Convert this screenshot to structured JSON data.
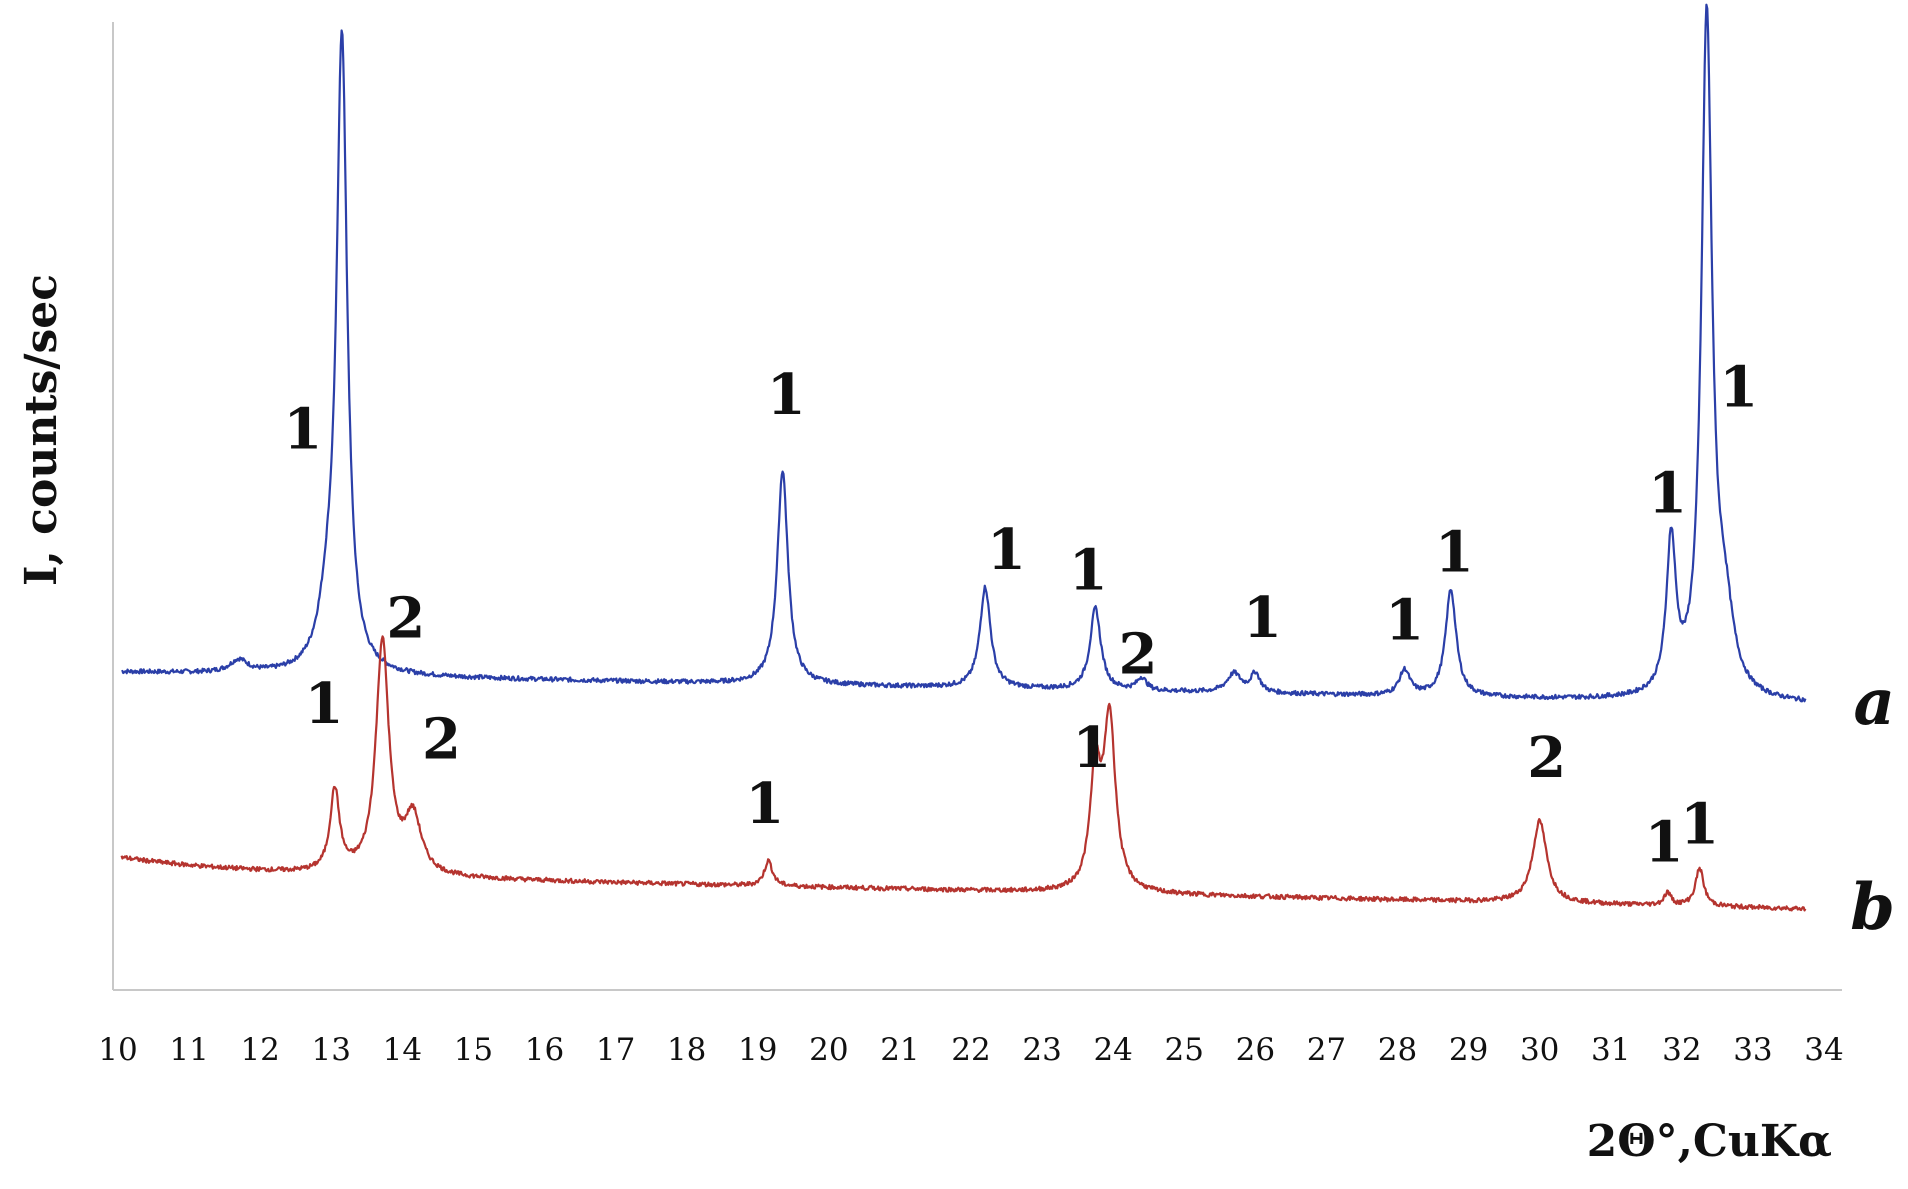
{
  "chart_data": {
    "type": "line",
    "title": "",
    "xlabel": "2Θ°,CuKα",
    "ylabel": "I, counts/sec",
    "xlim": [
      10,
      34
    ],
    "x_ticks": [
      10,
      11,
      12,
      13,
      14,
      15,
      16,
      17,
      18,
      19,
      20,
      21,
      22,
      23,
      24,
      25,
      26,
      27,
      28,
      29,
      30,
      31,
      32,
      33,
      34
    ],
    "grid": false,
    "legend": "none",
    "y_tick_labels": false,
    "colors": {
      "a": "#2b3fa8",
      "b": "#b5342f",
      "axis": "#c8c8c8",
      "text": "#111111"
    },
    "series": [
      {
        "name": "a",
        "baseline": 0,
        "peaks": [
          {
            "x": 11.7,
            "h": 2,
            "w": 0.15
          },
          {
            "x": 13.15,
            "h": 100,
            "w": 0.09
          },
          {
            "x": 12.95,
            "h": 8,
            "w": 0.15
          },
          {
            "x": 19.35,
            "h": 34,
            "w": 0.09
          },
          {
            "x": 22.2,
            "h": 16,
            "w": 0.09
          },
          {
            "x": 23.75,
            "h": 13,
            "w": 0.09
          },
          {
            "x": 24.4,
            "h": 2,
            "w": 0.08
          },
          {
            "x": 25.7,
            "h": 3,
            "w": 0.12
          },
          {
            "x": 26.0,
            "h": 3,
            "w": 0.08
          },
          {
            "x": 28.1,
            "h": 4,
            "w": 0.09
          },
          {
            "x": 28.75,
            "h": 17,
            "w": 0.09
          },
          {
            "x": 31.85,
            "h": 24,
            "w": 0.08
          },
          {
            "x": 32.35,
            "h": 107,
            "w": 0.09
          },
          {
            "x": 32.6,
            "h": 12,
            "w": 0.15
          }
        ],
        "peak_labels": [
          {
            "text": "1",
            "x": 12.6,
            "y": 36
          },
          {
            "text": "1",
            "x": 19.4,
            "y": 43
          },
          {
            "text": "1",
            "x": 22.5,
            "y": 19
          },
          {
            "text": "1",
            "x": 23.65,
            "y": 16
          },
          {
            "text": "1",
            "x": 26.1,
            "y": 9
          },
          {
            "text": "1",
            "x": 28.1,
            "y": 9
          },
          {
            "text": "1",
            "x": 28.8,
            "y": 20
          },
          {
            "text": "1",
            "x": 31.8,
            "y": 30
          },
          {
            "text": "1",
            "x": 32.8,
            "y": 47
          }
        ]
      },
      {
        "name": "b",
        "baseline": 0,
        "peaks": [
          {
            "x": 13.05,
            "h": 13,
            "w": 0.08
          },
          {
            "x": 13.72,
            "h": 37,
            "w": 0.11
          },
          {
            "x": 14.15,
            "h": 9,
            "w": 0.14
          },
          {
            "x": 19.15,
            "h": 4,
            "w": 0.07
          },
          {
            "x": 23.75,
            "h": 18,
            "w": 0.09
          },
          {
            "x": 23.95,
            "h": 27,
            "w": 0.1
          },
          {
            "x": 30.0,
            "h": 13,
            "w": 0.12
          },
          {
            "x": 31.8,
            "h": 2,
            "w": 0.06
          },
          {
            "x": 32.25,
            "h": 6,
            "w": 0.07
          }
        ],
        "peak_labels": [
          {
            "text": "1",
            "x": 12.9,
            "y": 24
          },
          {
            "text": "2",
            "x": 14.05,
            "y": 38
          },
          {
            "text": "2",
            "x": 14.55,
            "y": 19
          },
          {
            "text": "1",
            "x": 19.1,
            "y": 10
          },
          {
            "text": "1",
            "x": 23.7,
            "y": 20
          },
          {
            "text": "2",
            "x": 24.35,
            "y": 35
          },
          {
            "text": "2",
            "x": 30.1,
            "y": 20
          },
          {
            "text": "1",
            "x": 31.75,
            "y": 7
          },
          {
            "text": "1",
            "x": 32.25,
            "y": 10
          }
        ]
      }
    ]
  }
}
